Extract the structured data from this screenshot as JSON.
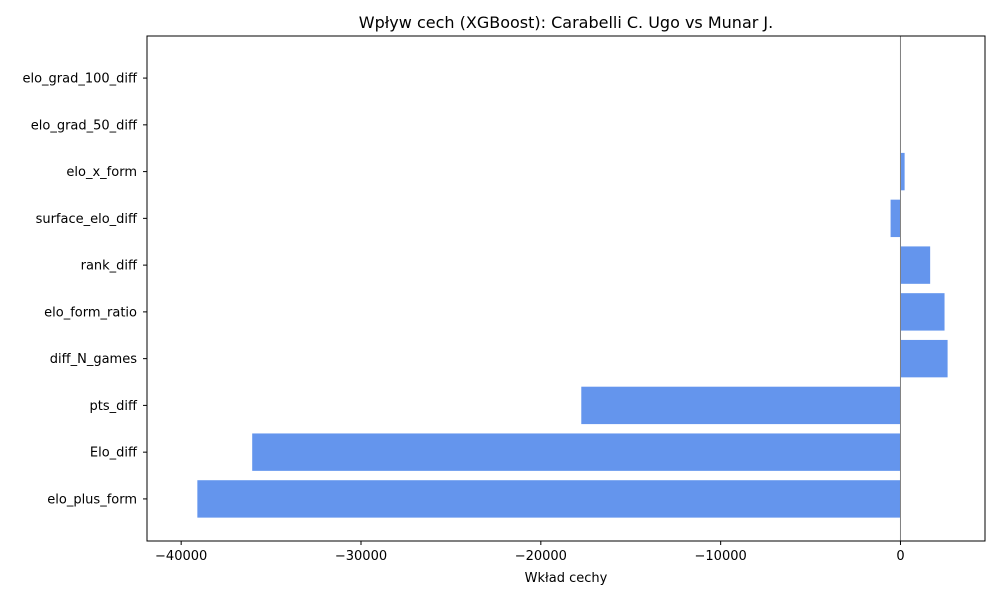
{
  "chart_data": {
    "type": "bar",
    "orientation": "horizontal",
    "title": "Wpływ cech (XGBoost): Carabelli C. Ugo vs Munar J.",
    "xlabel": "Wkład cechy",
    "ylabel": "",
    "categories": [
      "elo_plus_form",
      "Elo_diff",
      "pts_diff",
      "diff_N_games",
      "elo_form_ratio",
      "rank_diff",
      "surface_elo_diff",
      "elo_x_form",
      "elo_grad_50_diff",
      "elo_grad_100_diff"
    ],
    "values": [
      -39100,
      -36050,
      -17750,
      2620,
      2450,
      1650,
      -550,
      230,
      0,
      0
    ],
    "xlim": [
      -41900,
      4700
    ],
    "xticks": [
      -40000,
      -30000,
      -20000,
      -10000,
      0
    ],
    "xtick_labels": [
      "−40000",
      "−30000",
      "−20000",
      "−10000",
      "0"
    ],
    "bar_color": "#6495ED",
    "zero_line": true,
    "grid": false
  }
}
